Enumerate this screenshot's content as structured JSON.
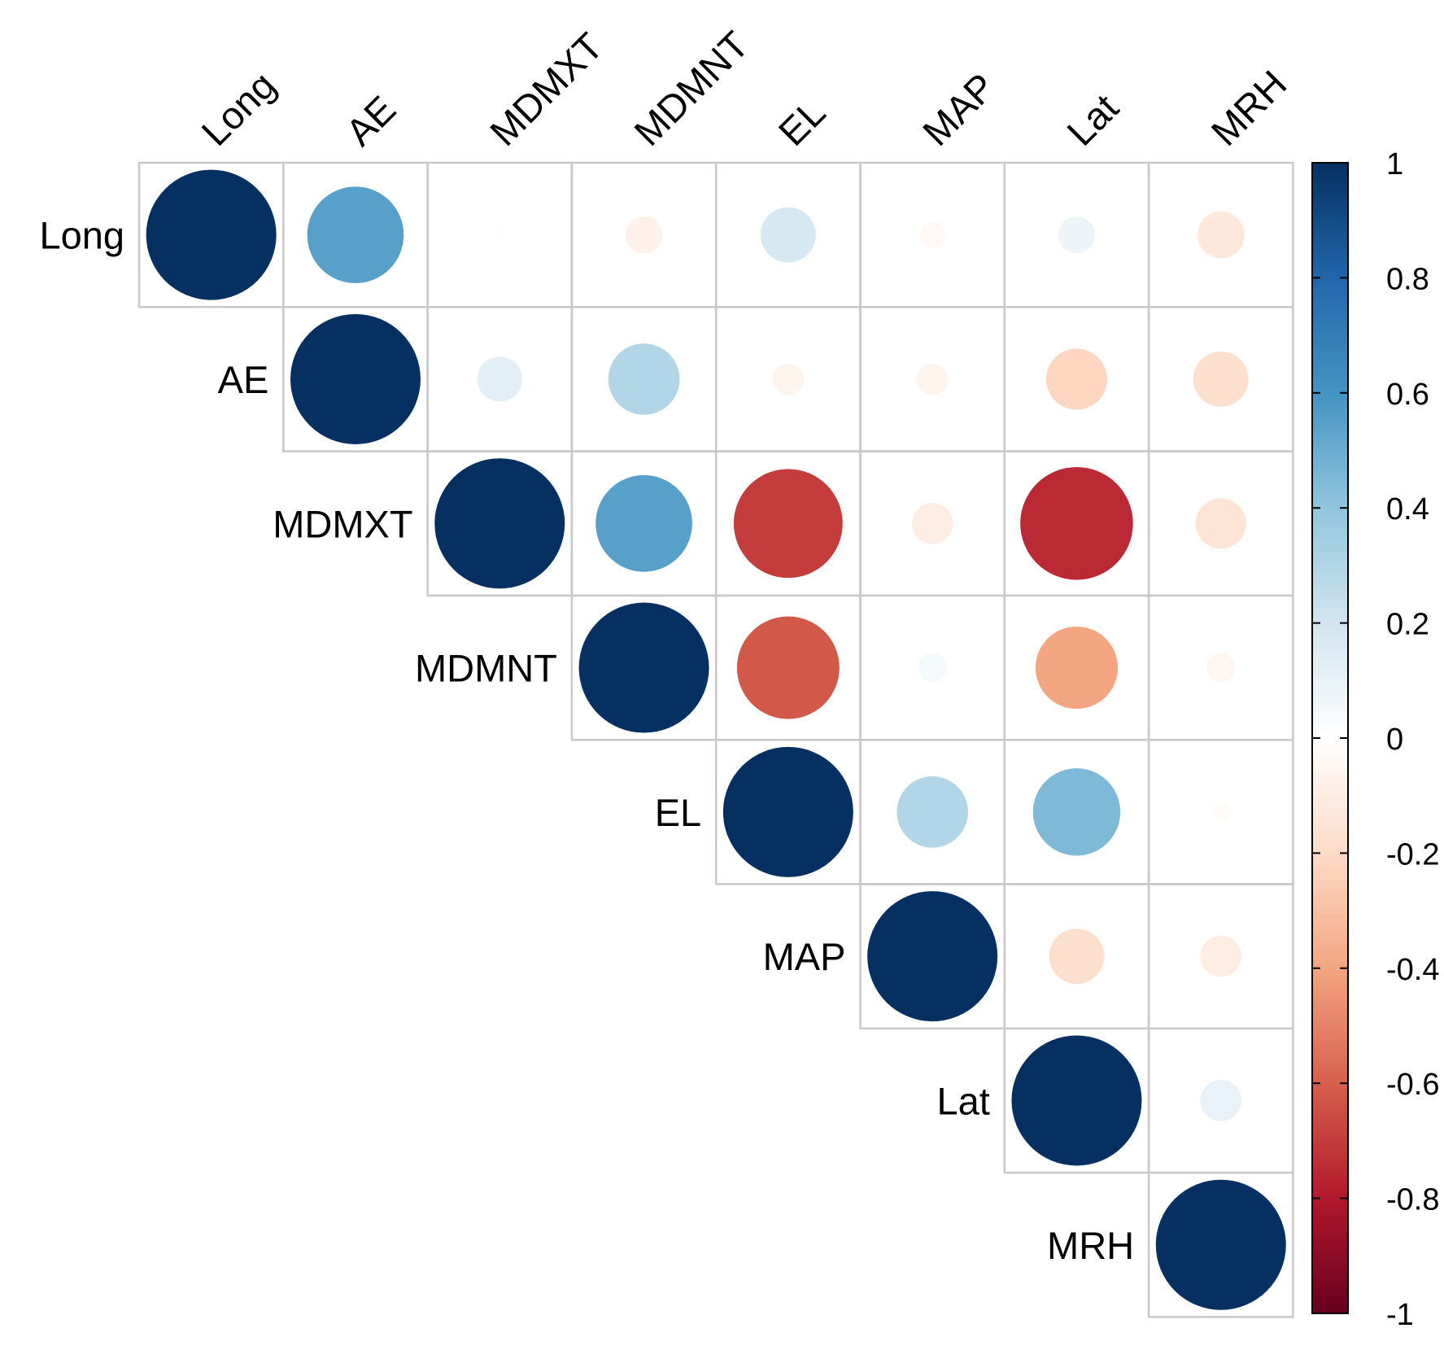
{
  "chart_data": {
    "type": "heatmap",
    "subtype": "correlation-matrix-upper-triangle-circles",
    "variables": [
      "Long",
      "AE",
      "MDMXT",
      "MDMNT",
      "EL",
      "MAP",
      "Lat",
      "MRH"
    ],
    "matrix": [
      [
        1.0,
        0.55,
        0.01,
        -0.08,
        0.18,
        -0.04,
        0.08,
        -0.13
      ],
      [
        null,
        1.0,
        0.12,
        0.3,
        -0.06,
        -0.06,
        -0.22,
        -0.18
      ],
      [
        null,
        null,
        1.0,
        0.55,
        -0.7,
        -0.1,
        -0.75,
        -0.15
      ],
      [
        null,
        null,
        null,
        1.0,
        -0.62,
        0.05,
        -0.4,
        -0.05
      ],
      [
        null,
        null,
        null,
        null,
        1.0,
        0.3,
        0.45,
        -0.02
      ],
      [
        null,
        null,
        null,
        null,
        null,
        1.0,
        -0.18,
        -0.1
      ],
      [
        null,
        null,
        null,
        null,
        null,
        null,
        1.0,
        0.1
      ],
      [
        null,
        null,
        null,
        null,
        null,
        null,
        null,
        1.0
      ]
    ],
    "colorbar": {
      "min": -1,
      "max": 1,
      "ticks": [
        "1",
        "0.8",
        "0.6",
        "0.4",
        "0.2",
        "0",
        "-0.2",
        "-0.4",
        "-0.6",
        "-0.8",
        "-1"
      ],
      "tick_values": [
        1,
        0.8,
        0.6,
        0.4,
        0.2,
        0,
        -0.2,
        -0.4,
        -0.6,
        -0.8,
        -1
      ],
      "palette_stops": [
        "#67001F",
        "#B2182B",
        "#D6604D",
        "#F4A582",
        "#FDDBC7",
        "#FFFFFF",
        "#D1E5F0",
        "#92C5DE",
        "#4393C3",
        "#2166AC",
        "#053061"
      ]
    },
    "grid": true
  }
}
